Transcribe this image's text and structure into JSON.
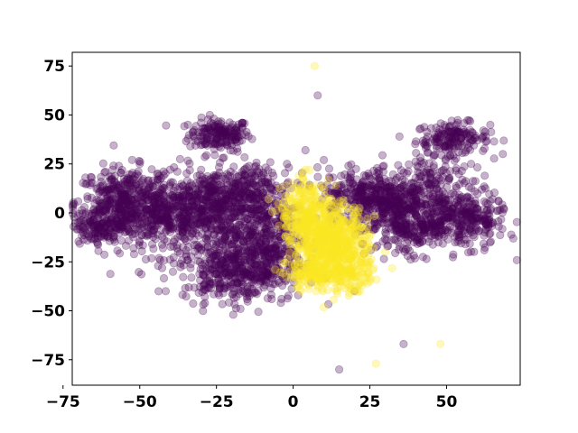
{
  "chart_data": {
    "type": "scatter",
    "title": "",
    "xlabel": "",
    "ylabel": "",
    "xlim": [
      -72,
      74
    ],
    "ylim": [
      -88,
      82
    ],
    "grid": false,
    "legend": "none",
    "x_ticks": [
      -75,
      -50,
      -25,
      0,
      25,
      50
    ],
    "x_tick_labels": [
      "−75",
      "−50",
      "−25",
      "0",
      "25",
      "50"
    ],
    "y_ticks": [
      -75,
      -50,
      -25,
      0,
      25,
      50,
      75
    ],
    "y_tick_labels": [
      "−75",
      "−50",
      "−25",
      "0",
      "25",
      "50",
      "75"
    ],
    "marker_alpha": 0.3,
    "colors": {
      "class_0": "#440154",
      "class_1": "#fde725"
    },
    "series": [
      {
        "color": "#440154",
        "clusters": [
          {
            "cx": -24,
            "cy": 40,
            "sx": 5,
            "sy": 4,
            "n": 180
          },
          {
            "cx": 52,
            "cy": 38,
            "sx": 6,
            "sy": 4,
            "n": 170
          },
          {
            "cx": -55,
            "cy": 5,
            "sx": 8,
            "sy": 9,
            "n": 420
          },
          {
            "cx": -38,
            "cy": -2,
            "sx": 9,
            "sy": 10,
            "n": 420
          },
          {
            "cx": -25,
            "cy": 5,
            "sx": 8,
            "sy": 9,
            "n": 380
          },
          {
            "cx": -14,
            "cy": -25,
            "sx": 9,
            "sy": 10,
            "n": 360
          },
          {
            "cx": -22,
            "cy": -32,
            "sx": 7,
            "sy": 6,
            "n": 160
          },
          {
            "cx": -10,
            "cy": -10,
            "sx": 7,
            "sy": 10,
            "n": 260
          },
          {
            "cx": -62,
            "cy": -6,
            "sx": 5,
            "sy": 5,
            "n": 150
          },
          {
            "cx": 22,
            "cy": 10,
            "sx": 7,
            "sy": 6,
            "n": 220
          },
          {
            "cx": 32,
            "cy": 3,
            "sx": 7,
            "sy": 8,
            "n": 300
          },
          {
            "cx": 40,
            "cy": -7,
            "sx": 7,
            "sy": 7,
            "n": 220
          },
          {
            "cx": 55,
            "cy": -3,
            "sx": 7,
            "sy": 7,
            "n": 300
          },
          {
            "cx": 47,
            "cy": 16,
            "sx": 6,
            "sy": 6,
            "n": 120
          },
          {
            "cx": -12,
            "cy": 12,
            "sx": 6,
            "sy": 6,
            "n": 140
          }
        ],
        "points": [
          [
            8,
            60
          ],
          [
            36,
            -67
          ],
          [
            15,
            -80
          ],
          [
            -44,
            -27
          ],
          [
            -34,
            -38
          ],
          [
            -2,
            25
          ],
          [
            4,
            32
          ],
          [
            -15,
            -44
          ],
          [
            -7,
            -44
          ],
          [
            -52,
            -18
          ],
          [
            63,
            -6
          ],
          [
            -70,
            -5
          ],
          [
            65,
            7
          ],
          [
            -23,
            28
          ],
          [
            -30,
            22
          ],
          [
            -44,
            20
          ],
          [
            -50,
            25
          ],
          [
            10,
            27
          ],
          [
            18,
            24
          ],
          [
            28,
            20
          ],
          [
            42,
            25
          ],
          [
            58,
            25
          ],
          [
            -4,
            -46
          ],
          [
            20,
            -40
          ]
        ]
      },
      {
        "color": "#fde725",
        "clusters": [
          {
            "cx": 12,
            "cy": -15,
            "sx": 6,
            "sy": 10,
            "n": 620
          },
          {
            "cx": 4,
            "cy": 0,
            "sx": 4,
            "sy": 8,
            "n": 220
          },
          {
            "cx": 18,
            "cy": -30,
            "sx": 4,
            "sy": 5,
            "n": 120
          },
          {
            "cx": 6,
            "cy": -32,
            "sx": 4,
            "sy": 4,
            "n": 100
          }
        ],
        "points": [
          [
            7,
            75
          ],
          [
            27,
            -77
          ],
          [
            48,
            -67
          ],
          [
            4,
            22
          ],
          [
            3,
            18
          ],
          [
            20,
            -40
          ],
          [
            25,
            -35
          ],
          [
            30,
            -20
          ],
          [
            -1,
            -30
          ],
          [
            10,
            12
          ]
        ]
      }
    ]
  }
}
